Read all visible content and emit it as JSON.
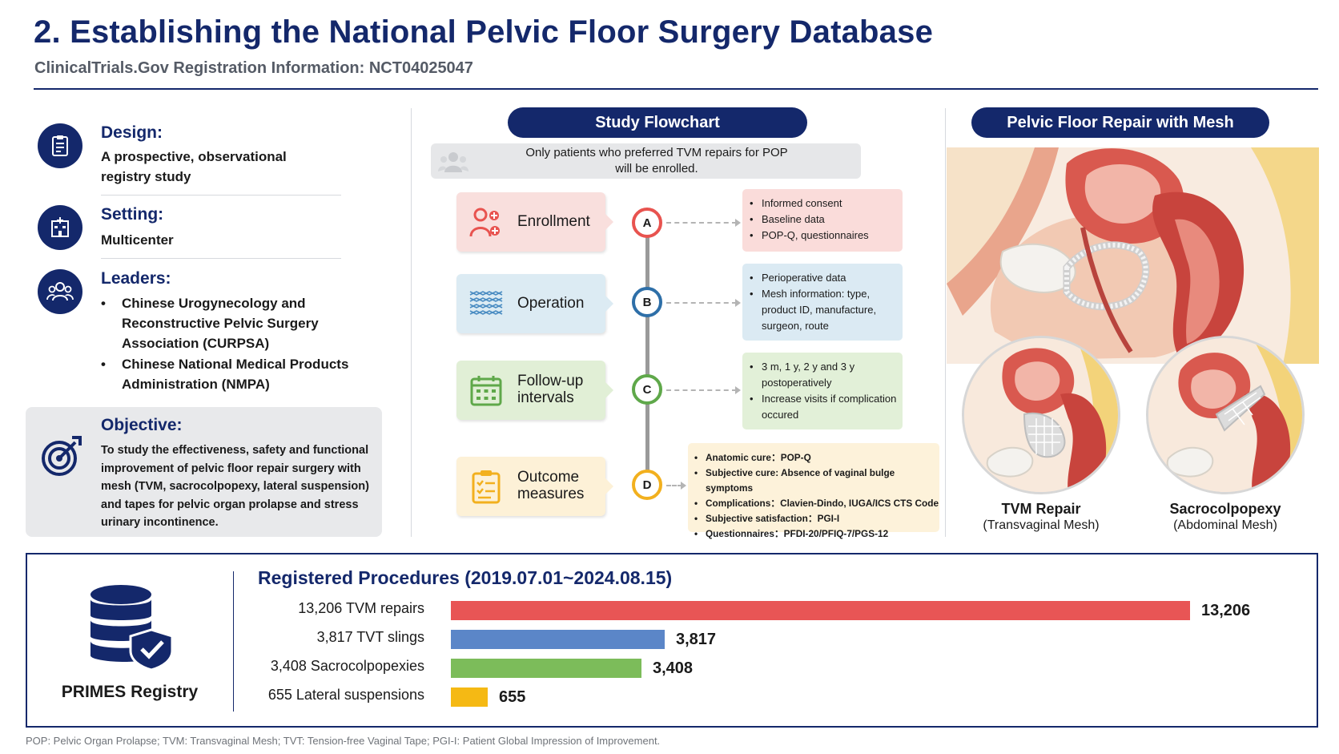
{
  "header": {
    "title": "2. Establishing the National Pelvic Floor Surgery Database",
    "subtitle": "ClinicalTrials.Gov Registration Information:  NCT04025047"
  },
  "left": {
    "design": {
      "heading": "Design:",
      "line1": "A prospective, observational",
      "line2": "registry study",
      "icon": "clipboard-icon"
    },
    "setting": {
      "heading": "Setting:",
      "text": "Multicenter",
      "icon": "hospital-icon"
    },
    "leaders": {
      "heading": "Leaders:",
      "icon": "people-group-icon",
      "items": [
        {
          "line1": "Chinese Urogynecology and",
          "line2": "Reconstructive Pelvic Surgery",
          "line3": "Association (CURPSA)"
        },
        {
          "line1": "Chinese National Medical Products",
          "line2": "Administration (NMPA)"
        }
      ]
    },
    "objective": {
      "heading": "Objective:",
      "icon": "target-icon",
      "lines": [
        "To study the effectiveness, safety and functional",
        "improvement of pelvic floor repair surgery with",
        "mesh (TVM, sacrocolpopexy, lateral suspension)",
        "and tapes for pelvic organ prolapse and stress",
        "urinary incontinence."
      ]
    }
  },
  "flowchart": {
    "title": "Study Flowchart",
    "note_line1": "Only patients who preferred TVM repairs for POP",
    "note_line2": "will be enrolled.",
    "steps": [
      {
        "line1": "Enrollment",
        "line2": "",
        "node": "A",
        "color": "#e8534f",
        "bg": "#f9dfdd",
        "detail_bg": "#fadcda",
        "details": [
          "Informed consent",
          "Baseline data",
          "POP-Q, questionnaires"
        ]
      },
      {
        "line1": "Operation",
        "line2": "",
        "node": "B",
        "color": "#2e6fa8",
        "bg": "#dcebf3",
        "detail_bg": "#dbeaf3",
        "details": [
          "Perioperative data",
          "Mesh information: type,",
          "product ID, manufacture,",
          "surgeon, route"
        ]
      },
      {
        "line1": "Follow-up",
        "line2": "intervals",
        "node": "C",
        "color": "#5fa84a",
        "bg": "#e1efd6",
        "detail_bg": "#e2f0d8",
        "details": [
          "3 m, 1 y, 2 y and 3 y",
          "postoperatively",
          "Increase visits if complication",
          "occured"
        ]
      },
      {
        "line1": "Outcome",
        "line2": "measures",
        "node": "D",
        "color": "#f2b01e",
        "bg": "#fdf1d7",
        "detail_bg": "#fdf2da",
        "details": [
          "Anatomic cure：POP-Q",
          "Subjective cure: Absence of vaginal bulge symptoms",
          "Complications：Clavien-Dindo, IUGA/ICS CTS Code",
          "Subjective satisfaction：PGI-I",
          "Questionnaires：PFDI-20/PFIQ-7/PGS-12"
        ]
      }
    ]
  },
  "mesh": {
    "title": "Pelvic Floor Repair with Mesh",
    "tvm_caption": "TVM Repair",
    "tvm_sub": "(Transvaginal Mesh)",
    "sacro_caption": "Sacrocolpopexy",
    "sacro_sub": "(Abdominal Mesh)"
  },
  "registry": {
    "label": "PRIMES Registry",
    "icon": "database-shield-icon",
    "procedures_title": "Registered Procedures (2019.07.01~2024.08.15)"
  },
  "chart_data": {
    "type": "bar",
    "orientation": "horizontal",
    "title": "Registered Procedures (2019.07.01~2024.08.15)",
    "categories": [
      "13,206 TVM repairs",
      "3,817 TVT slings",
      "3,408 Sacrocolpopexies",
      "655 Lateral suspensions"
    ],
    "values": [
      13206,
      3817,
      3408,
      655
    ],
    "value_labels": [
      "13,206",
      "3,817",
      "3,408",
      "655"
    ],
    "colors": [
      "#e85555",
      "#5b86c8",
      "#7cbc5a",
      "#f5b914"
    ]
  },
  "footnote": "POP: Pelvic Organ Prolapse; TVM: Transvaginal Mesh; TVT: Tension-free Vaginal Tape; PGI-I: Patient Global Impression of Improvement."
}
